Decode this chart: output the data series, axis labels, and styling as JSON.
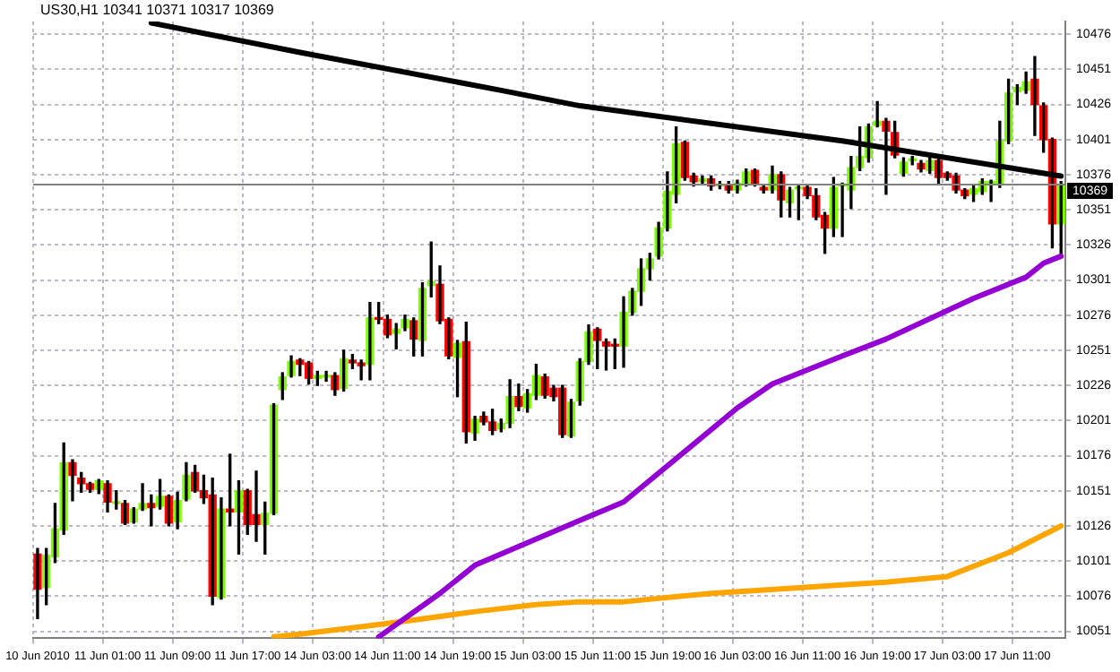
{
  "chart_data": {
    "type": "candlestick",
    "title": "US30,H1 10341 10371 10317 10369",
    "categories": [
      "10 Jun 2010",
      null,
      null,
      null,
      null,
      null,
      null,
      null,
      "11 Jun 01:00",
      null,
      null,
      null,
      null,
      null,
      null,
      null,
      "11 Jun 09:00",
      null,
      null,
      null,
      null,
      null,
      null,
      null,
      "11 Jun 17:00",
      null,
      null,
      null,
      null,
      null,
      null,
      null,
      "14 Jun 03:00",
      null,
      null,
      null,
      null,
      null,
      null,
      null,
      "14 Jun 11:00",
      null,
      null,
      null,
      null,
      null,
      null,
      null,
      "14 Jun 19:00",
      null,
      null,
      null,
      null,
      null,
      null,
      null,
      "15 Jun 03:00",
      null,
      null,
      null,
      null,
      null,
      null,
      null,
      "15 Jun 11:00",
      null,
      null,
      null,
      null,
      null,
      null,
      null,
      "15 Jun 19:00",
      null,
      null,
      null,
      null,
      null,
      null,
      null,
      "16 Jun 03:00",
      null,
      null,
      null,
      null,
      null,
      null,
      null,
      "16 Jun 11:00",
      null,
      null,
      null,
      null,
      null,
      null,
      null,
      "16 Jun 19:00",
      null,
      null,
      null,
      null,
      null,
      null,
      null,
      "17 Jun 03:00",
      null,
      null,
      null,
      null,
      null,
      null,
      null,
      "17 Jun 11:00",
      null,
      null,
      null,
      null,
      null
    ],
    "ohlc": [
      [
        10106,
        10110,
        10060,
        10081
      ],
      [
        10082,
        10110,
        10070,
        10105
      ],
      [
        10104,
        10142,
        10100,
        10124
      ],
      [
        10123,
        10185,
        10120,
        10171
      ],
      [
        10171,
        10173,
        10144,
        10162
      ],
      [
        10160,
        10164,
        10150,
        10156
      ],
      [
        10156,
        10157,
        10150,
        10152
      ],
      [
        10152,
        10159,
        10149,
        10158
      ],
      [
        10156,
        10158,
        10136,
        10143
      ],
      [
        10142,
        10151,
        10138,
        10142
      ],
      [
        10142,
        10144,
        10127,
        10128
      ],
      [
        10129,
        10139,
        10128,
        10138
      ],
      [
        10138,
        10156,
        10137,
        10142
      ],
      [
        10142,
        10148,
        10126,
        10139
      ],
      [
        10140,
        10159,
        10138,
        10147
      ],
      [
        10147,
        10148,
        10126,
        10128
      ],
      [
        10129,
        10150,
        10124,
        10144
      ],
      [
        10145,
        10171,
        10144,
        10162
      ],
      [
        10164,
        10169,
        10150,
        10151
      ],
      [
        10151,
        10162,
        10142,
        10146
      ],
      [
        10148,
        10160,
        10070,
        10076
      ],
      [
        10075,
        10146,
        10074,
        10138
      ],
      [
        10138,
        10177,
        10126,
        10136
      ],
      [
        10136,
        10158,
        10106,
        10151
      ],
      [
        10151,
        10152,
        10120,
        10127
      ],
      [
        10134,
        10165,
        10115,
        10127
      ],
      [
        10127,
        10143,
        10106,
        10135
      ],
      [
        10135,
        10213,
        10134,
        10212
      ],
      [
        10223,
        10235,
        10216,
        10232
      ],
      [
        10233,
        10247,
        10232,
        10243
      ],
      [
        10244,
        10245,
        10233,
        10241
      ],
      [
        10242,
        10243,
        10227,
        10231
      ],
      [
        10231,
        10236,
        10226,
        10233
      ],
      [
        10232,
        10236,
        10229,
        10232
      ],
      [
        10233,
        10235,
        10219,
        10223
      ],
      [
        10224,
        10251,
        10222,
        10245
      ],
      [
        10244,
        10248,
        10238,
        10242
      ],
      [
        10242,
        10244,
        10230,
        10240
      ],
      [
        10241,
        10285,
        10230,
        10274
      ],
      [
        10274,
        10285,
        10270,
        10273
      ],
      [
        10273,
        10276,
        10260,
        10262
      ],
      [
        10263,
        10270,
        10252,
        10266
      ],
      [
        10267,
        10276,
        10265,
        10273
      ],
      [
        10272,
        10274,
        10247,
        10259
      ],
      [
        10258,
        10299,
        10247,
        10295
      ],
      [
        10297,
        10328,
        10289,
        10300
      ],
      [
        10298,
        10311,
        10270,
        10272
      ],
      [
        10273,
        10274,
        10245,
        10247
      ],
      [
        10246,
        10258,
        10218,
        10256
      ],
      [
        10257,
        10271,
        10185,
        10193
      ],
      [
        10192,
        10204,
        10187,
        10202
      ],
      [
        10204,
        10207,
        10198,
        10200
      ],
      [
        10200,
        10209,
        10191,
        10194
      ],
      [
        10195,
        10202,
        10193,
        10199
      ],
      [
        10199,
        10230,
        10196,
        10218
      ],
      [
        10218,
        10227,
        10208,
        10211
      ],
      [
        10210,
        10223,
        10207,
        10220
      ],
      [
        10219,
        10241,
        10216,
        10233
      ],
      [
        10232,
        10234,
        10217,
        10219
      ],
      [
        10224,
        10226,
        10215,
        10218
      ],
      [
        10224,
        10226,
        10189,
        10191
      ],
      [
        10190,
        10216,
        10189,
        10214
      ],
      [
        10215,
        10245,
        10212,
        10243
      ],
      [
        10243,
        10269,
        10241,
        10264
      ],
      [
        10266,
        10267,
        10238,
        10258
      ],
      [
        10257,
        10259,
        10237,
        10254
      ],
      [
        10255,
        10259,
        10238,
        10254
      ],
      [
        10254,
        10289,
        10239,
        10278
      ],
      [
        10278,
        10295,
        10276,
        10293
      ],
      [
        10293,
        10316,
        10283,
        10309
      ],
      [
        10309,
        10320,
        10301,
        10316
      ],
      [
        10318,
        10342,
        10316,
        10338
      ],
      [
        10338,
        10378,
        10336,
        10364
      ],
      [
        10362,
        10410,
        10356,
        10398
      ],
      [
        10399,
        10400,
        10372,
        10374
      ],
      [
        10375,
        10377,
        10368,
        10371
      ],
      [
        10371,
        10375,
        10369,
        10373
      ],
      [
        10373,
        10375,
        10365,
        10368
      ],
      [
        10368,
        10371,
        10366,
        10368
      ],
      [
        10369,
        10371,
        10363,
        10365
      ],
      [
        10365,
        10372,
        10363,
        10370
      ],
      [
        10370,
        10380,
        10368,
        10378
      ],
      [
        10379,
        10380,
        10368,
        10370
      ],
      [
        10367,
        10368,
        10363,
        10365
      ],
      [
        10365,
        10382,
        10363,
        10376
      ],
      [
        10376,
        10378,
        10346,
        10358
      ],
      [
        10356,
        10367,
        10346,
        10365
      ],
      [
        10366,
        10368,
        10344,
        10366
      ],
      [
        10367,
        10369,
        10359,
        10361
      ],
      [
        10361,
        10366,
        10344,
        10346
      ],
      [
        10347,
        10349,
        10320,
        10338
      ],
      [
        10338,
        10374,
        10332,
        10367
      ],
      [
        10368,
        10370,
        10332,
        10368
      ],
      [
        10365,
        10389,
        10352,
        10381
      ],
      [
        10381,
        10410,
        10379,
        10389
      ],
      [
        10388,
        10412,
        10385,
        10410
      ],
      [
        10411,
        10428,
        10410,
        10414
      ],
      [
        10414,
        10416,
        10362,
        10407
      ],
      [
        10406,
        10414,
        10388,
        10390
      ],
      [
        10377,
        10388,
        10375,
        10385
      ],
      [
        10386,
        10389,
        10383,
        10387
      ],
      [
        10384,
        10386,
        10378,
        10380
      ],
      [
        10379,
        10388,
        10377,
        10386
      ],
      [
        10386,
        10388,
        10370,
        10374
      ],
      [
        10377,
        10378,
        10372,
        10374
      ],
      [
        10375,
        10377,
        10363,
        10365
      ],
      [
        10365,
        10366,
        10359,
        10361
      ],
      [
        10362,
        10368,
        10357,
        10366
      ],
      [
        10364,
        10373,
        10362,
        10371
      ],
      [
        10370,
        10372,
        10357,
        10370
      ],
      [
        10369,
        10414,
        10367,
        10400
      ],
      [
        10400,
        10444,
        10398,
        10434
      ],
      [
        10435,
        10440,
        10426,
        10438
      ],
      [
        10436,
        10449,
        10434,
        10442
      ],
      [
        10444,
        10460,
        10404,
        10426
      ],
      [
        10425,
        10427,
        10392,
        10401
      ],
      [
        10401,
        10402,
        10324,
        10341
      ],
      [
        10341,
        10371,
        10317,
        10369
      ]
    ],
    "colors": [
      "#ff0000",
      "#7cfc00",
      "#7cfc00",
      "#7cfc00",
      "#ff0000",
      "#ff0000",
      "#ff0000",
      "#7cfc00",
      "#ff0000",
      "#7cfc00",
      "#ff0000",
      "#7cfc00",
      "#7cfc00",
      "#ff0000",
      "#7cfc00",
      "#ff0000",
      "#7cfc00",
      "#7cfc00",
      "#ff0000",
      "#ff0000",
      "#ff0000",
      "#7cfc00",
      "#ff0000",
      "#7cfc00",
      "#ff0000",
      "#ff0000",
      "#7cfc00",
      "#7cfc00",
      "#7cfc00",
      "#7cfc00",
      "#ff0000",
      "#ff0000",
      "#7cfc00",
      "#7cfc00",
      "#ff0000",
      "#7cfc00",
      "#ff0000",
      "#ff0000",
      "#7cfc00",
      "#ff0000",
      "#ff0000",
      "#7cfc00",
      "#7cfc00",
      "#ff0000",
      "#7cfc00",
      "#7cfc00",
      "#ff0000",
      "#ff0000",
      "#7cfc00",
      "#ff0000",
      "#7cfc00",
      "#ff0000",
      "#ff0000",
      "#7cfc00",
      "#7cfc00",
      "#ff0000",
      "#7cfc00",
      "#7cfc00",
      "#ff0000",
      "#ff0000",
      "#ff0000",
      "#7cfc00",
      "#7cfc00",
      "#7cfc00",
      "#ff0000",
      "#ff0000",
      "#ff0000",
      "#7cfc00",
      "#7cfc00",
      "#7cfc00",
      "#7cfc00",
      "#7cfc00",
      "#7cfc00",
      "#7cfc00",
      "#ff0000",
      "#ff0000",
      "#7cfc00",
      "#ff0000",
      "#7cfc00",
      "#ff0000",
      "#7cfc00",
      "#7cfc00",
      "#ff0000",
      "#ff0000",
      "#7cfc00",
      "#ff0000",
      "#7cfc00",
      "#7cfc00",
      "#ff0000",
      "#ff0000",
      "#ff0000",
      "#7cfc00",
      "#7cfc00",
      "#7cfc00",
      "#7cfc00",
      "#7cfc00",
      "#7cfc00",
      "#ff0000",
      "#ff0000",
      "#7cfc00",
      "#7cfc00",
      "#ff0000",
      "#7cfc00",
      "#ff0000",
      "#ff0000",
      "#ff0000",
      "#ff0000",
      "#7cfc00",
      "#7cfc00",
      "#7cfc00",
      "#7cfc00",
      "#7cfc00",
      "#7cfc00",
      "#7cfc00",
      "#ff0000",
      "#ff0000",
      "#ff0000",
      "#7cfc00"
    ],
    "series": [
      {
        "type": "line",
        "color": "#000000",
        "values": [
          null,
          null,
          null,
          null,
          null,
          null,
          null,
          null,
          null,
          null,
          null,
          null,
          null,
          10484,
          null,
          null,
          null,
          null,
          null,
          null,
          null,
          null,
          null,
          null,
          null,
          null,
          null,
          null,
          null,
          null,
          10463,
          null,
          null,
          null,
          null,
          null,
          null,
          null,
          null,
          null,
          null,
          null,
          null,
          null,
          null,
          null,
          null,
          null,
          null,
          null,
          null,
          null,
          null,
          10436,
          null,
          null,
          null,
          null,
          null,
          null,
          null,
          null,
          10425,
          null,
          null,
          null,
          null,
          null,
          null,
          null,
          null,
          null,
          null,
          null,
          null,
          null,
          null,
          null,
          null,
          null,
          null,
          null,
          null,
          null,
          null,
          null,
          null,
          null,
          null,
          null,
          null,
          null,
          10400,
          null,
          null,
          null,
          null,
          null,
          null,
          null,
          null,
          null,
          null,
          null,
          null,
          null,
          null,
          null,
          null,
          null,
          null,
          null,
          null,
          null,
          null,
          null,
          null,
          10375
        ]
      },
      {
        "type": "line",
        "color": "#9400d3",
        "values": [
          null,
          null,
          null,
          null,
          null,
          null,
          null,
          null,
          null,
          null,
          null,
          null,
          null,
          null,
          null,
          null,
          null,
          null,
          null,
          null,
          null,
          null,
          null,
          null,
          null,
          null,
          null,
          null,
          null,
          null,
          null,
          null,
          null,
          null,
          null,
          null,
          null,
          null,
          null,
          10047,
          null,
          null,
          null,
          null,
          null,
          null,
          10078,
          null,
          null,
          null,
          10098,
          null,
          null,
          null,
          null,
          null,
          10114,
          null,
          null,
          null,
          null,
          null,
          10130,
          null,
          null,
          null,
          null,
          10143,
          null,
          null,
          null,
          null,
          null,
          null,
          10179,
          null,
          null,
          null,
          null,
          null,
          10210,
          null,
          null,
          null,
          10227,
          null,
          null,
          null,
          null,
          null,
          null,
          null,
          10247,
          null,
          null,
          null,
          null,
          10259,
          null,
          null,
          null,
          null,
          null,
          null,
          null,
          null,
          null,
          10288,
          null,
          null,
          null,
          null,
          null,
          10303,
          null,
          10313,
          null,
          10318
        ]
      },
      {
        "type": "line",
        "color": "#ffa500",
        "values": [
          null,
          null,
          null,
          null,
          null,
          null,
          null,
          null,
          null,
          null,
          null,
          null,
          null,
          null,
          null,
          null,
          null,
          null,
          null,
          null,
          null,
          null,
          null,
          null,
          null,
          null,
          null,
          10047,
          null,
          null,
          10049,
          null,
          null,
          null,
          null,
          null,
          null,
          null,
          10055,
          null,
          null,
          null,
          null,
          10059,
          null,
          null,
          null,
          null,
          null,
          null,
          10065,
          null,
          null,
          null,
          null,
          null,
          null,
          10070,
          null,
          null,
          null,
          null,
          10072,
          null,
          null,
          null,
          null,
          10072,
          null,
          null,
          null,
          null,
          null,
          null,
          null,
          null,
          null,
          10078,
          null,
          null,
          null,
          null,
          null,
          null,
          null,
          null,
          null,
          10082,
          null,
          null,
          null,
          null,
          10084,
          null,
          null,
          null,
          null,
          10086,
          null,
          null,
          null,
          null,
          null,
          null,
          10090,
          null,
          null,
          null,
          null,
          null,
          null,
          10107,
          null,
          null,
          null,
          null,
          null,
          10126
        ]
      }
    ],
    "ylim": [
      10046,
      10485
    ],
    "yticks": [
      10051,
      10076,
      10101,
      10126,
      10151,
      10176,
      10201,
      10226,
      10251,
      10276,
      10301,
      10326,
      10351,
      10376,
      10401,
      10426,
      10451,
      10476
    ],
    "ref_lines": [
      {
        "axis": "y",
        "value": 10369,
        "label": "10369",
        "color": "#808080"
      }
    ],
    "grid": true,
    "legend": false,
    "marker": "none"
  }
}
